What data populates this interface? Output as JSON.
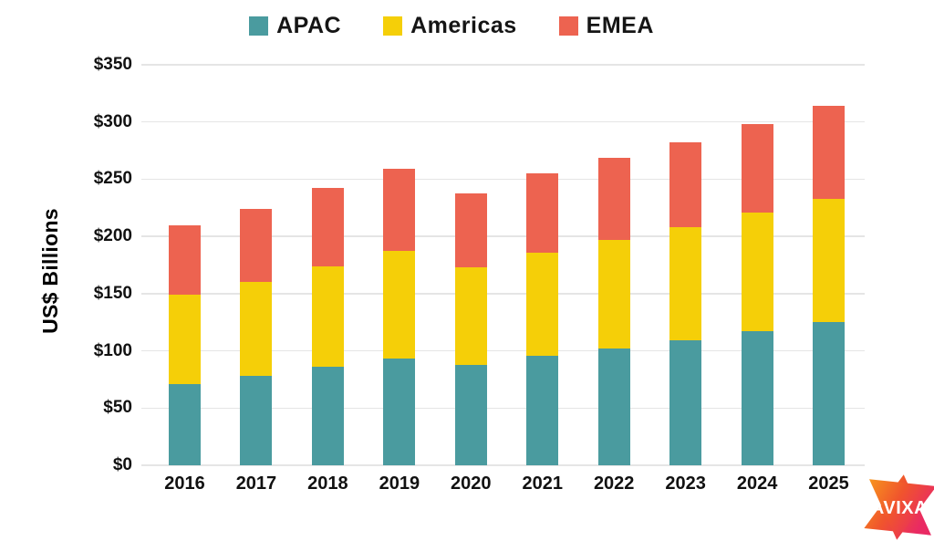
{
  "chart_data": {
    "type": "bar",
    "stacked": true,
    "title": "",
    "xlabel": "",
    "ylabel": "US$ Billions",
    "categories": [
      "2016",
      "2017",
      "2018",
      "2019",
      "2020",
      "2021",
      "2022",
      "2023",
      "2024",
      "2025"
    ],
    "series": [
      {
        "name": "APAC",
        "color": "#4A9B9F",
        "values": [
          71,
          78,
          86,
          93,
          88,
          96,
          102,
          109,
          117,
          125
        ]
      },
      {
        "name": "Americas",
        "color": "#F5CF08",
        "values": [
          78,
          82,
          88,
          94,
          85,
          90,
          95,
          99,
          104,
          108
        ]
      },
      {
        "name": "EMEA",
        "color": "#ED6350",
        "values": [
          61,
          64,
          68,
          72,
          65,
          69,
          72,
          74,
          77,
          81
        ]
      }
    ],
    "totals": [
      210,
      224,
      242,
      259,
      238,
      255,
      269,
      282,
      298,
      314
    ],
    "ylim": [
      0,
      350
    ],
    "ytick_step": 50,
    "ytick_labels": [
      "$0",
      "$50",
      "$100",
      "$150",
      "$200",
      "$250",
      "$300",
      "$350"
    ],
    "grid": true,
    "legend_position": "top-center"
  },
  "branding": {
    "logo_text": "AVIXA",
    "logo_gradient": [
      "#F7941D",
      "#F0542D",
      "#E92A63"
    ]
  }
}
